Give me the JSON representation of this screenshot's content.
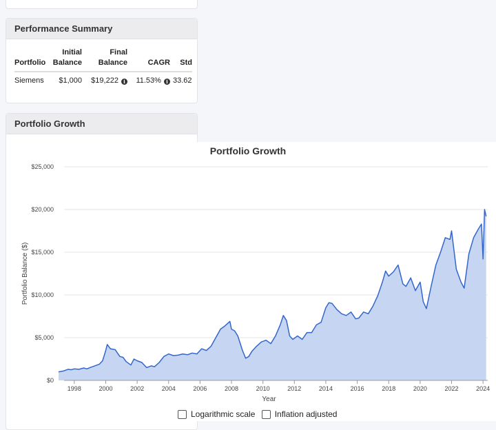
{
  "summary": {
    "title": "Performance Summary",
    "headers": {
      "portfolio": "Portfolio",
      "initial_1": "Initial",
      "initial_2": "Balance",
      "final_1": "Final",
      "final_2": "Balance",
      "cagr": "CAGR",
      "std": "Std"
    },
    "row": {
      "portfolio": "Siemens",
      "initial": "$1,000",
      "final": "$19,222",
      "cagr": "11.53%",
      "std": "33.62"
    }
  },
  "growth": {
    "title": "Portfolio Growth",
    "options": {
      "log_label": "Logarithmic scale",
      "inflation_label": "Inflation adjusted"
    },
    "options_checked": {
      "log": false,
      "inflation": false
    }
  },
  "chart_data": {
    "type": "area",
    "title": "Portfolio Growth",
    "xlabel": "Year",
    "ylabel": "Portfolio Balance ($)",
    "xlim": [
      1997.0,
      2024.3
    ],
    "ylim": [
      0,
      25000
    ],
    "y_ticks": [
      0,
      5000,
      10000,
      15000,
      20000,
      25000
    ],
    "y_tick_labels": [
      "$0",
      "$5,000",
      "$10,000",
      "$15,000",
      "$20,000",
      "$25,000"
    ],
    "x_ticks": [
      1998,
      2000,
      2002,
      2004,
      2006,
      2008,
      2010,
      2012,
      2014,
      2016,
      2018,
      2020,
      2022,
      2024
    ],
    "x_tick_labels": [
      "1998",
      "2000",
      "2002",
      "2004",
      "2006",
      "2008",
      "2010",
      "2012",
      "2014",
      "2016",
      "2018",
      "2020",
      "2022",
      "2024"
    ],
    "grid": true,
    "colors": {
      "line": "#3366cc",
      "fill": "#c5d5f2"
    },
    "series": [
      {
        "x": [
          1997.0,
          1997.3,
          1997.6,
          1997.8,
          1998.0,
          1998.3,
          1998.6,
          1998.8,
          1999.0,
          1999.3,
          1999.6,
          1999.8,
          2000.0,
          2000.1,
          2000.3,
          2000.6,
          2000.9,
          2001.1,
          2001.3,
          2001.6,
          2001.8,
          2002.0,
          2002.3,
          2002.6,
          2002.9,
          2003.1,
          2003.4,
          2003.7,
          2004.0,
          2004.3,
          2004.6,
          2004.9,
          2005.2,
          2005.5,
          2005.8,
          2006.1,
          2006.4,
          2006.7,
          2007.0,
          2007.3,
          2007.6,
          2007.9,
          2008.0,
          2008.2,
          2008.4,
          2008.7,
          2008.9,
          2009.1,
          2009.3,
          2009.6,
          2009.9,
          2010.2,
          2010.5,
          2010.8,
          2011.1,
          2011.3,
          2011.5,
          2011.7,
          2011.9,
          2012.2,
          2012.5,
          2012.8,
          2013.1,
          2013.4,
          2013.7,
          2014.0,
          2014.2,
          2014.4,
          2014.7,
          2015.0,
          2015.3,
          2015.6,
          2015.9,
          2016.1,
          2016.4,
          2016.7,
          2017.0,
          2017.3,
          2017.6,
          2017.8,
          2018.0,
          2018.3,
          2018.6,
          2018.9,
          2019.1,
          2019.4,
          2019.7,
          2020.0,
          2020.2,
          2020.4,
          2020.7,
          2021.0,
          2021.3,
          2021.6,
          2021.9,
          2022.0,
          2022.3,
          2022.6,
          2022.8,
          2023.1,
          2023.4,
          2023.7,
          2023.9,
          2024.0,
          2024.1,
          2024.2
        ],
        "values": [
          1000,
          1100,
          1300,
          1250,
          1350,
          1300,
          1450,
          1350,
          1500,
          1700,
          1900,
          2300,
          3500,
          4200,
          3700,
          3600,
          2800,
          2700,
          2200,
          1800,
          2500,
          2300,
          2100,
          1500,
          1700,
          1600,
          2100,
          2800,
          3100,
          2900,
          2950,
          3100,
          3000,
          3200,
          3100,
          3700,
          3500,
          4000,
          5000,
          6000,
          6400,
          6900,
          6000,
          5800,
          5200,
          3500,
          2600,
          2800,
          3400,
          4000,
          4500,
          4700,
          4300,
          5200,
          6500,
          7600,
          7000,
          5200,
          4800,
          5200,
          4800,
          5600,
          5600,
          6500,
          6800,
          8500,
          9100,
          9000,
          8300,
          7800,
          7600,
          8000,
          7200,
          7300,
          8000,
          7800,
          8700,
          9900,
          11500,
          12800,
          12200,
          12700,
          13500,
          11300,
          11000,
          12000,
          10500,
          11500,
          9200,
          8400,
          11000,
          13500,
          15000,
          16700,
          16500,
          17500,
          13000,
          11500,
          10800,
          14800,
          16700,
          17700,
          18300,
          14200,
          20000,
          19200
        ]
      }
    ]
  }
}
